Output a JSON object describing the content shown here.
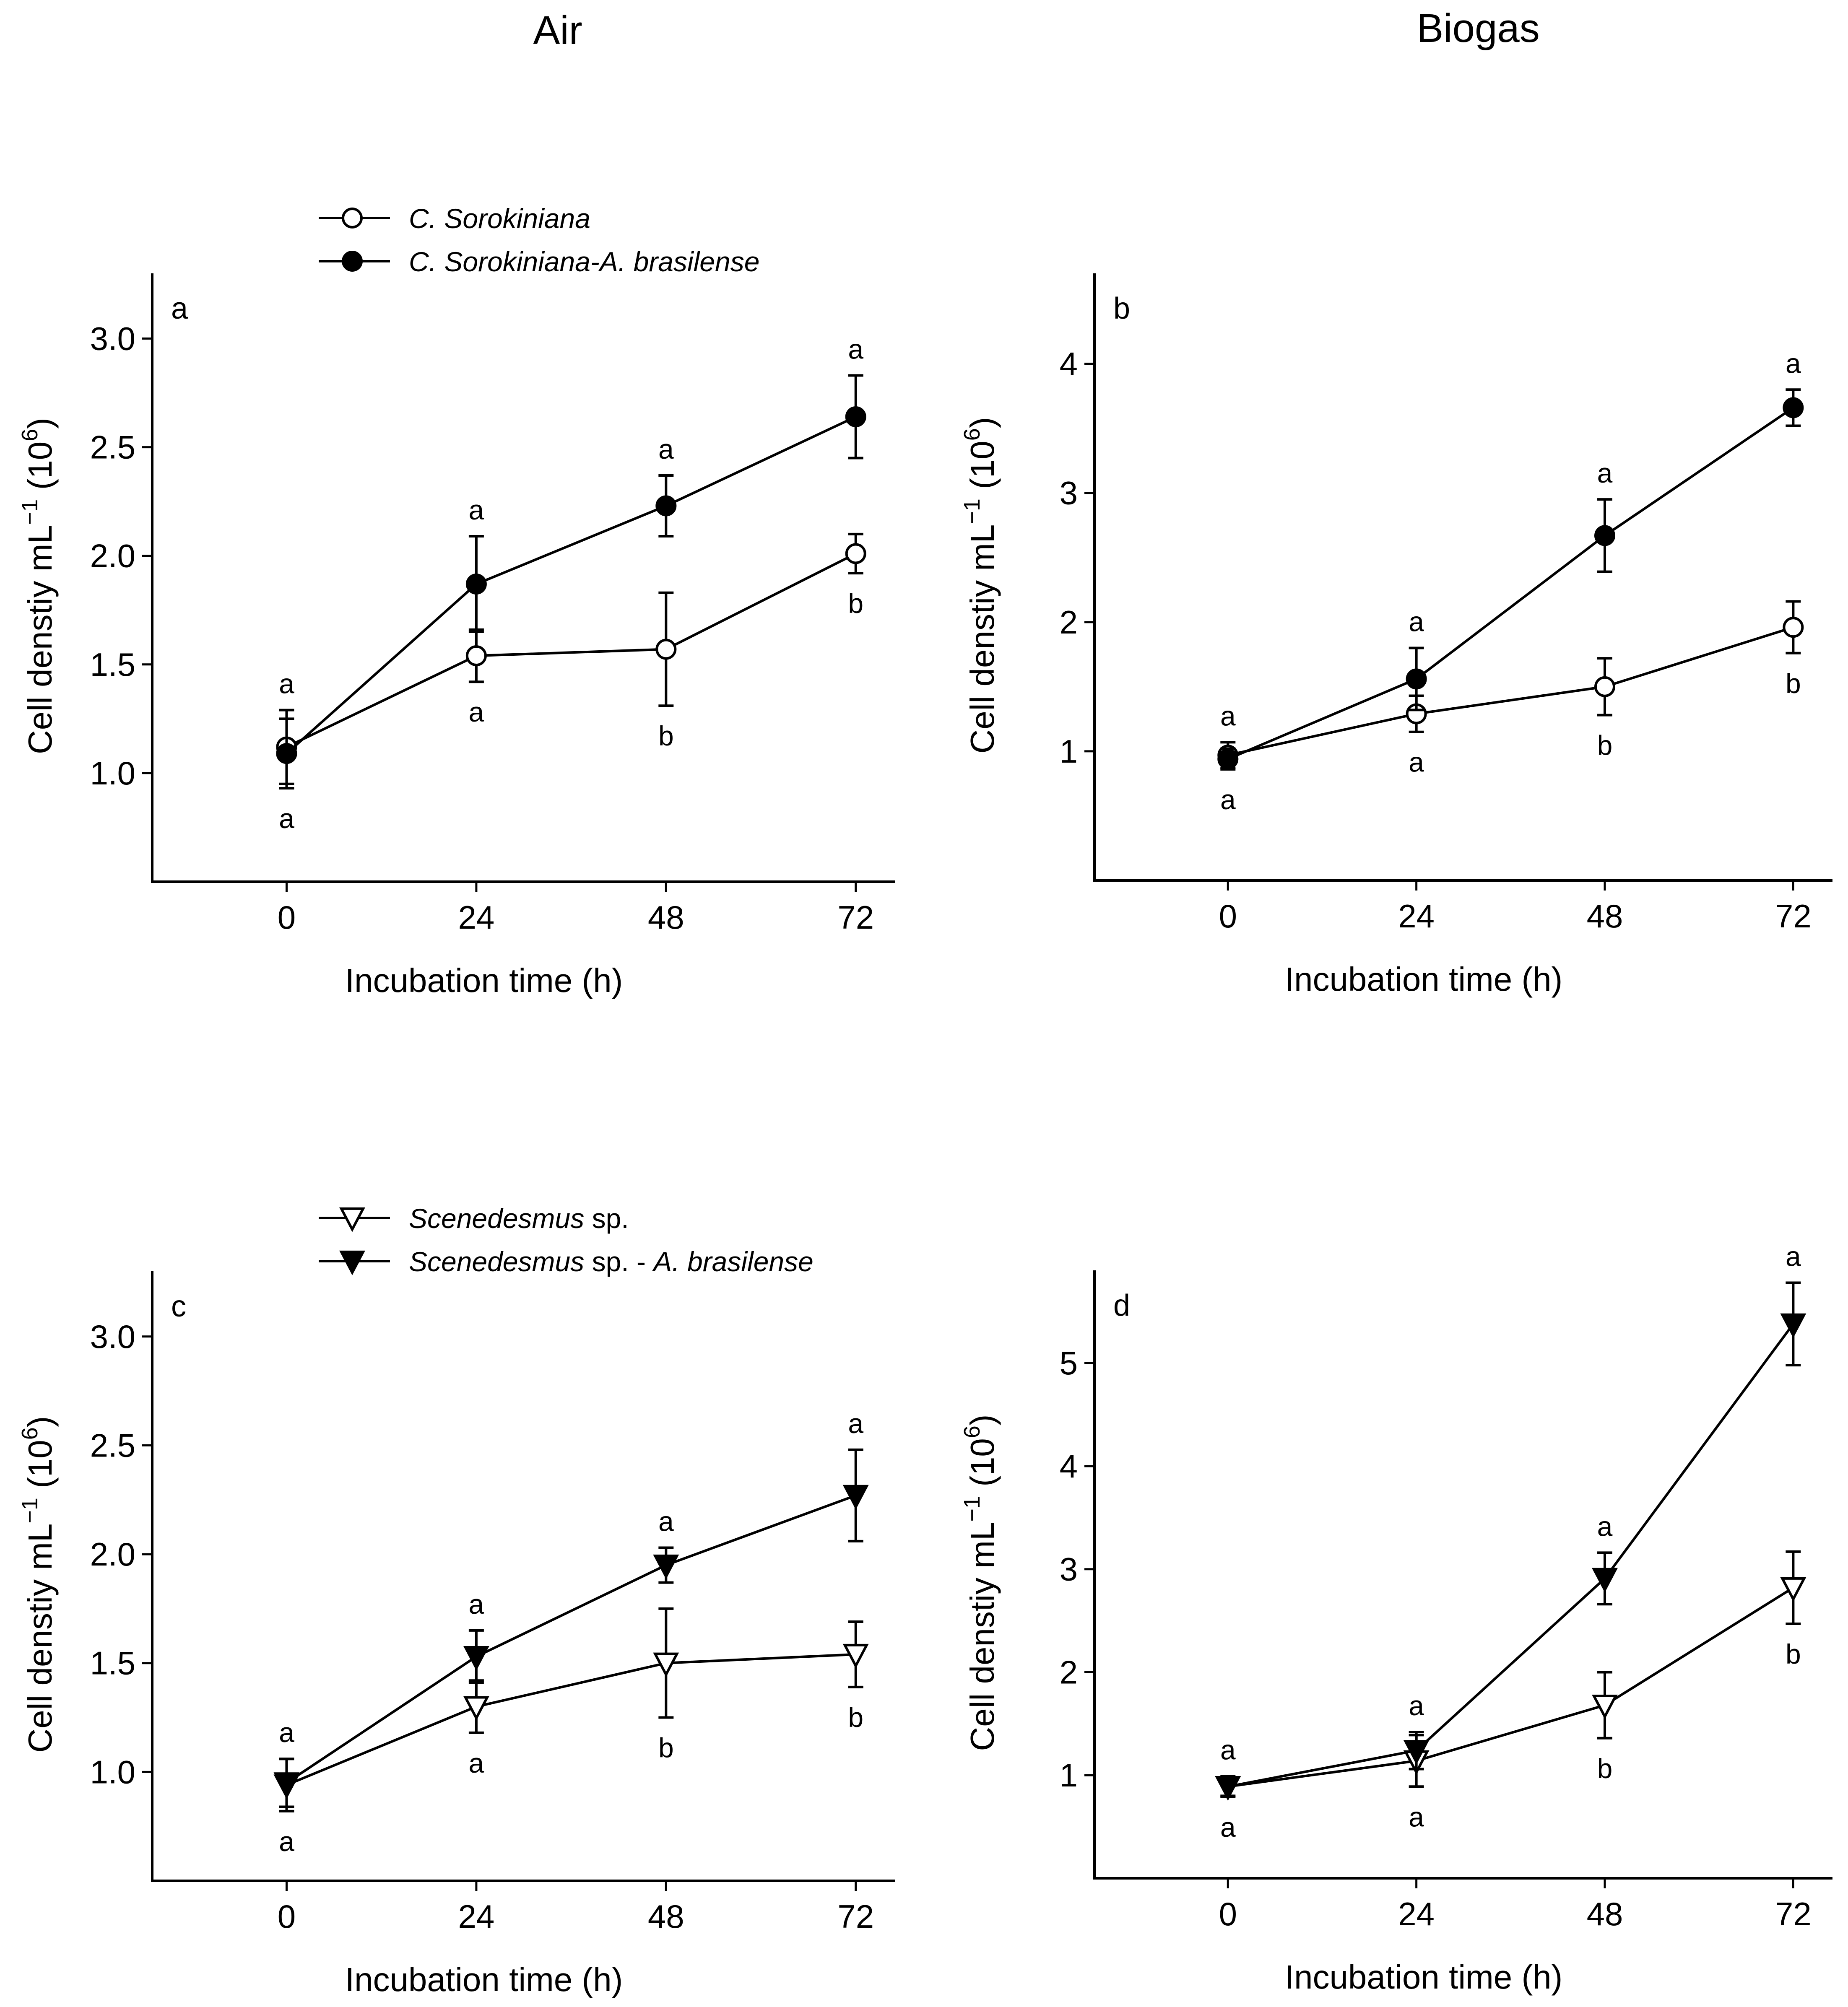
{
  "titles": {
    "left": "Air",
    "right": "Biogas"
  },
  "legends": {
    "top": [
      {
        "label": "C. Sorokiniana",
        "marker": "circle-open"
      },
      {
        "label": "C. Sorokiniana-A. brasilense",
        "marker": "circle-filled"
      }
    ],
    "bottom": [
      {
        "label_italic": "Scenedesmus",
        "label_plain": " sp.",
        "marker": "triangle-down-open"
      },
      {
        "label_italic": "Scenedesmus",
        "label_plain": " sp. - ",
        "label_italic2": "A. brasilense",
        "marker": "triangle-down-filled"
      }
    ]
  },
  "chart_data": [
    {
      "panel": "a",
      "type": "line",
      "x": [
        0,
        24,
        48,
        72
      ],
      "xticks": [
        "0",
        "24",
        "48",
        "72"
      ],
      "xlim": [
        -17,
        77
      ],
      "ylim": [
        0.5,
        3.3
      ],
      "yticks": [
        "1.0",
        "1.5",
        "2.0",
        "2.5",
        "3.0"
      ],
      "ytick_values": [
        1.0,
        1.5,
        2.0,
        2.5,
        3.0
      ],
      "xlabel": "Incubation time (h)",
      "ylabel": "Cell denstiy mL",
      "ylabel_sup": "−1",
      "ylabel_unit_base": " (10",
      "ylabel_unit_exp": "6",
      "ylabel_unit_close": ")",
      "series": [
        {
          "name": "C. Sorokiniana",
          "marker": "circle-open",
          "values": [
            1.12,
            1.54,
            1.57,
            2.01
          ],
          "errors": [
            0.17,
            0.12,
            0.26,
            0.09
          ],
          "letters": [
            "a",
            "a",
            "b",
            "b"
          ]
        },
        {
          "name": "C. Sorokiniana-A. brasilense",
          "marker": "circle-filled",
          "values": [
            1.09,
            1.87,
            2.23,
            2.64
          ],
          "errors": [
            0.16,
            0.22,
            0.14,
            0.19
          ],
          "letters": [
            "a",
            "a",
            "a",
            "a"
          ]
        }
      ]
    },
    {
      "panel": "b",
      "type": "line",
      "x": [
        0,
        24,
        48,
        72
      ],
      "xticks": [
        "0",
        "24",
        "48",
        "72"
      ],
      "xlim": [
        -17,
        77
      ],
      "ylim": [
        0,
        4.7
      ],
      "yticks": [
        "1",
        "2",
        "3",
        "4"
      ],
      "ytick_values": [
        1,
        2,
        3,
        4
      ],
      "xlabel": "Incubation time (h)",
      "ylabel": "Cell denstiy mL",
      "ylabel_sup": "−1",
      "ylabel_unit_base": " (10",
      "ylabel_unit_exp": "6",
      "ylabel_unit_close": ")",
      "series": [
        {
          "name": "C. Sorokiniana",
          "marker": "circle-open",
          "values": [
            0.97,
            1.29,
            1.5,
            1.96
          ],
          "errors": [
            0.1,
            0.14,
            0.22,
            0.2
          ],
          "letters": [
            "a",
            "a",
            "b",
            "b"
          ]
        },
        {
          "name": "C. Sorokiniana-A. brasilense",
          "marker": "circle-filled",
          "values": [
            0.94,
            1.56,
            2.67,
            3.66
          ],
          "errors": [
            0.08,
            0.24,
            0.28,
            0.14
          ],
          "letters": [
            "a",
            "a",
            "a",
            "a"
          ]
        }
      ]
    },
    {
      "panel": "c",
      "type": "line",
      "x": [
        0,
        24,
        48,
        72
      ],
      "xticks": [
        "0",
        "24",
        "48",
        "72"
      ],
      "xlim": [
        -17,
        77
      ],
      "ylim": [
        0.5,
        3.3
      ],
      "yticks": [
        "1.0",
        "1.5",
        "2.0",
        "2.5",
        "3.0"
      ],
      "ytick_values": [
        1.0,
        1.5,
        2.0,
        2.5,
        3.0
      ],
      "xlabel": "Incubation time (h)",
      "ylabel": "Cell denstiy mL",
      "ylabel_sup": "−1",
      "ylabel_unit_base": " (10",
      "ylabel_unit_exp": "6",
      "ylabel_unit_close": ")",
      "series": [
        {
          "name": "Scenedesmus sp.",
          "marker": "triangle-down-open",
          "values": [
            0.94,
            1.3,
            1.5,
            1.54
          ],
          "errors": [
            0.12,
            0.12,
            0.25,
            0.15
          ],
          "letters": [
            "a",
            "a",
            "b",
            "b"
          ]
        },
        {
          "name": "Scenedesmus sp. - A. brasilense",
          "marker": "triangle-down-filled",
          "values": [
            0.95,
            1.53,
            1.95,
            2.27
          ],
          "errors": [
            0.11,
            0.12,
            0.08,
            0.21
          ],
          "letters": [
            "a",
            "a",
            "a",
            "a"
          ]
        }
      ]
    },
    {
      "panel": "d",
      "type": "line",
      "x": [
        0,
        24,
        48,
        72
      ],
      "xticks": [
        "0",
        "24",
        "48",
        "72"
      ],
      "xlim": [
        -17,
        77
      ],
      "ylim": [
        0,
        5.9
      ],
      "yticks": [
        "1",
        "2",
        "3",
        "4",
        "5"
      ],
      "ytick_values": [
        1,
        2,
        3,
        4,
        5
      ],
      "xlabel": "Incubation time (h)",
      "ylabel": "Cell denstiy mL",
      "ylabel_sup": "−1",
      "ylabel_unit_base": " (10",
      "ylabel_unit_exp": "6",
      "ylabel_unit_close": ")",
      "series": [
        {
          "name": "Scenedesmus sp.",
          "marker": "triangle-down-open",
          "values": [
            0.89,
            1.14,
            1.68,
            2.82
          ],
          "errors": [
            0.1,
            0.25,
            0.32,
            0.35
          ],
          "letters": [
            "a",
            "a",
            "b",
            "b"
          ]
        },
        {
          "name": "Scenedesmus sp. - A. brasilense",
          "marker": "triangle-down-filled",
          "values": [
            0.89,
            1.24,
            2.91,
            5.38
          ],
          "errors": [
            0.09,
            0.18,
            0.25,
            0.4
          ],
          "letters": [
            "a",
            "a",
            "a",
            "a"
          ]
        }
      ]
    }
  ]
}
